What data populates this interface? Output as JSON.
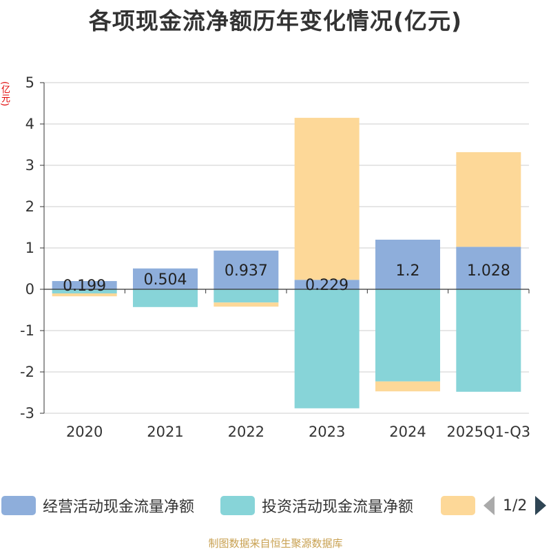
{
  "chart_data": {
    "type": "bar",
    "stacked": true,
    "title": "各项现金流净额历年变化情况(亿元)",
    "ylabel": "(亿元)",
    "xlabel": "",
    "categories": [
      "2020",
      "2021",
      "2022",
      "2023",
      "2024",
      "2025Q1-Q3"
    ],
    "ylim": [
      -3,
      5
    ],
    "yticks": [
      5,
      4,
      3,
      2,
      1,
      0,
      -1,
      -2,
      -3
    ],
    "series": [
      {
        "name": "经营活动现金流量净额",
        "color": "#8eaedb",
        "values": [
          0.199,
          0.504,
          0.937,
          0.229,
          1.2,
          1.028
        ],
        "labels": [
          "0.199",
          "0.504",
          "0.937",
          "0.229",
          "1.2",
          "1.028"
        ]
      },
      {
        "name": "投资活动现金流量净额",
        "color": "#87d4d8",
        "values": [
          -0.1,
          -0.43,
          -0.32,
          -2.88,
          -2.23,
          -2.48
        ]
      },
      {
        "name": "",
        "color": "#fdd898",
        "values": [
          -0.07,
          0,
          -0.1,
          3.92,
          -0.24,
          2.29
        ]
      }
    ],
    "legend": {
      "position": "bottom",
      "page": "1/2"
    }
  },
  "footer": "制图数据来自恒生聚源数据库"
}
